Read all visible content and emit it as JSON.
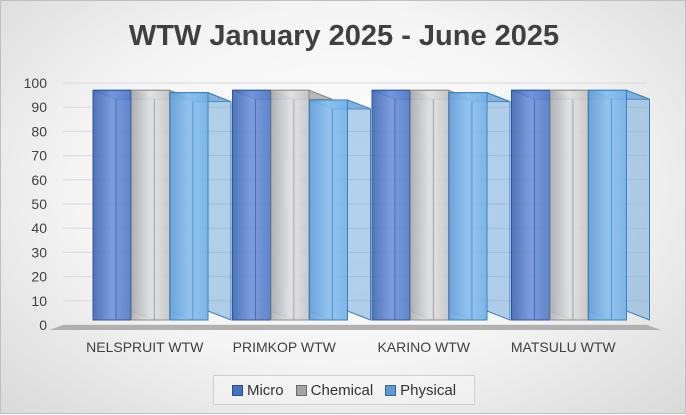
{
  "chart_data": {
    "type": "bar",
    "title": "WTW January 2025 - June 2025",
    "xlabel": "",
    "ylabel": "",
    "ylim": [
      0,
      100
    ],
    "y_ticks": [
      "0",
      "10",
      "20",
      "30",
      "40",
      "50",
      "60",
      "70",
      "80",
      "90",
      "100"
    ],
    "categories": [
      "NELSPRUIT WTW",
      "PRIMKOP WTW",
      "KARINO WTW",
      "MATSULU WTW"
    ],
    "series": [
      {
        "name": "Micro",
        "color": "#4472C4",
        "values": [
          97,
          97,
          97,
          97
        ]
      },
      {
        "name": "Chemical",
        "color": "#A5A5A5",
        "values": [
          97,
          97,
          97,
          97
        ]
      },
      {
        "name": "Physical",
        "color": "#5B9BD5",
        "values": [
          96,
          93,
          96,
          97
        ]
      }
    ],
    "legend_position": "bottom",
    "grid": true
  }
}
